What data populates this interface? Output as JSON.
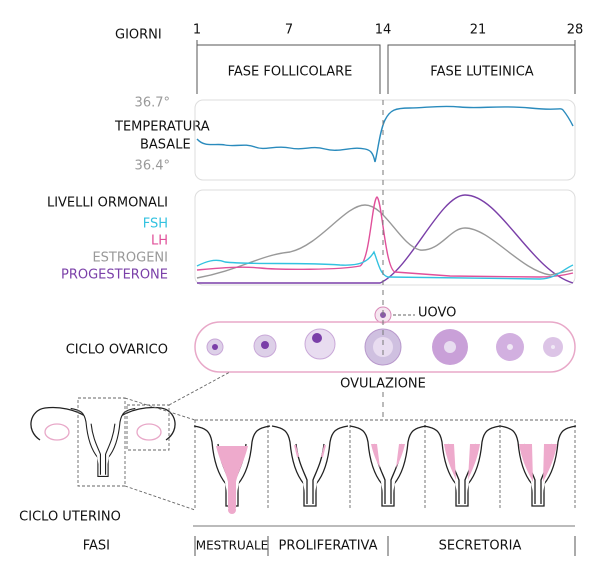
{
  "days": {
    "label": "GIORNI",
    "ticks": [
      "1",
      "7",
      "14",
      "21",
      "28"
    ]
  },
  "phases_top": [
    "FASE FOLLICOLARE",
    "FASE LUTEINICA"
  ],
  "temperature": {
    "label": [
      "TEMPERATURA",
      "BASALE"
    ],
    "high": "36.7°",
    "low": "36.4°"
  },
  "hormones": {
    "label": "LIVELLI ORMONALI",
    "items": [
      "FSH",
      "LH",
      "ESTROGENI",
      "PROGESTERONE"
    ]
  },
  "ovarian": {
    "label": "CICLO OVARICO",
    "egg": "UOVO",
    "ovulation": "OVULAZIONE"
  },
  "uterine": {
    "label": "CICLO UTERINO"
  },
  "phases": {
    "label": "FASI",
    "items": [
      "MESTRUALE",
      "PROLIFERATIVA",
      "SECRETORIA"
    ]
  }
}
